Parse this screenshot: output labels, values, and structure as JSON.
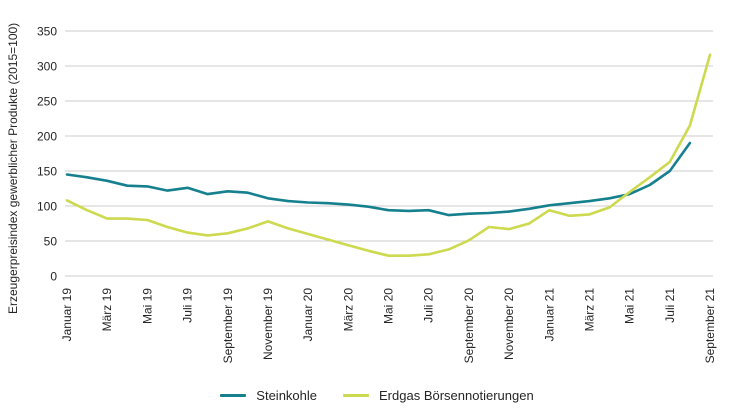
{
  "chart_data": {
    "type": "line",
    "title": "",
    "ylabel": "Erzeugerpreisindex gewerblicher Produkte (2015=100)",
    "ylim": [
      0,
      350
    ],
    "yticks": [
      0,
      50,
      100,
      150,
      200,
      250,
      300,
      350
    ],
    "x_tick_labels": [
      "Januar 19",
      "März 19",
      "Mai 19",
      "Juli 19",
      "September 19",
      "November 19",
      "Januar 20",
      "März 20",
      "Mai 20",
      "Juli 20",
      "September 20",
      "November 20",
      "Januar 21",
      "März 21",
      "Mai 21",
      "Juli 21",
      "September 21"
    ],
    "x_tick_every_n_months": 2,
    "grid": "horizontal",
    "legend_position": "bottom-center",
    "background_color": "#ffffff",
    "gridline_color": "#cccccc",
    "text_color": "#262626",
    "series": [
      {
        "name": "Steinkohle",
        "color": "#16808e",
        "values": [
          145,
          141,
          136,
          129,
          128,
          122,
          126,
          117,
          121,
          119,
          111,
          107,
          105,
          104,
          102,
          99,
          94,
          93,
          94,
          87,
          89,
          90,
          92,
          96,
          101,
          104,
          107,
          111,
          117,
          130,
          150,
          190
        ]
      },
      {
        "name": "Erdgas Börsennotierungen",
        "color": "#cdd94e",
        "values": [
          108,
          94,
          82,
          82,
          80,
          70,
          62,
          58,
          61,
          68,
          78,
          68,
          60,
          52,
          44,
          36,
          29,
          29,
          31,
          38,
          51,
          70,
          67,
          75,
          94,
          86,
          88,
          98,
          120,
          141,
          163,
          215,
          316
        ]
      }
    ]
  }
}
